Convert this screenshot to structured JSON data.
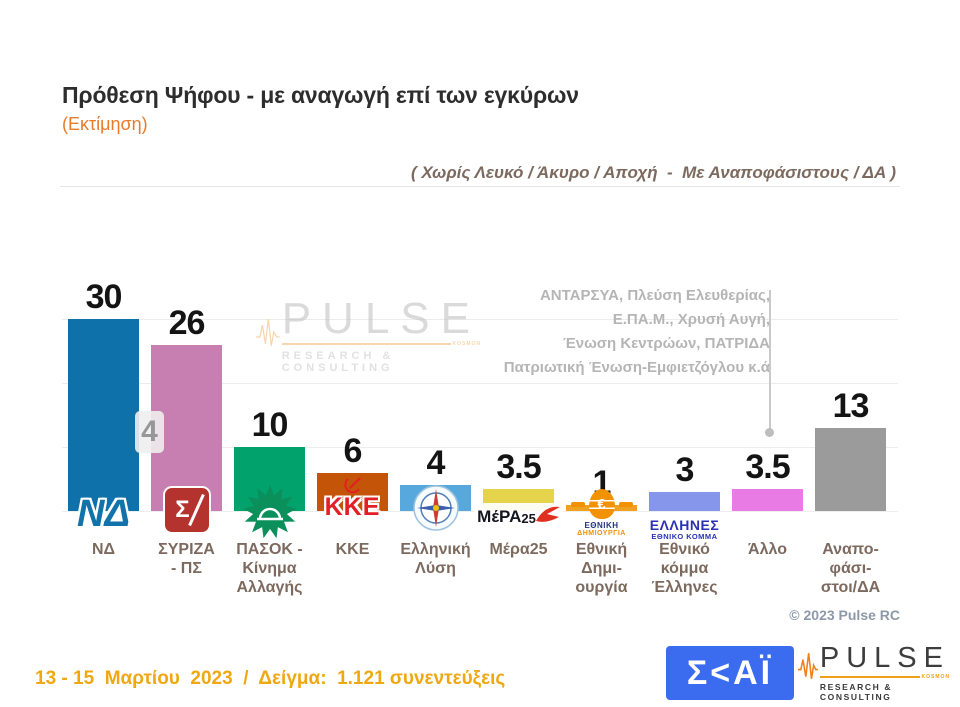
{
  "header": {
    "title": "Πρόθεση Ψήφου - με αναγωγή επί των εγκύρων",
    "subtitle": "(Εκτίμηση)",
    "note": "( Χωρίς Λευκό / Άκυρο / Αποχή  -  Με Αναποφάσιστους / ΔΑ )"
  },
  "chart_data": {
    "type": "bar",
    "title": "Πρόθεση Ψήφου - με αναγωγή επί των εγκύρων (Εκτίμηση)",
    "ylim": [
      0,
      33
    ],
    "gridlines": [
      10,
      20,
      30
    ],
    "grid": "horizontal-light",
    "legend": "none",
    "categories": [
      "ΝΔ",
      "ΣΥΡΙΖΑ - ΠΣ",
      "ΠΑΣΟΚ - Κίνημα Αλλαγής",
      "ΚΚΕ",
      "Ελληνική Λύση",
      "Μέρα25",
      "Εθνική Δημιουργία",
      "Εθνικό κόμμα Έλληνες",
      "Άλλο",
      "Αναποφάσιστοι/ΔΑ"
    ],
    "values": [
      30,
      26,
      10,
      6,
      4,
      3.5,
      1,
      3,
      3.5,
      13
    ],
    "bars": [
      {
        "id": "nd",
        "label_lines": [
          "ΝΔ"
        ],
        "value": 30,
        "display": "30",
        "color": "#0e71a9",
        "logo": {
          "type": "nd",
          "text": "ΝΔ"
        }
      },
      {
        "id": "syriza",
        "label_lines": [
          "ΣΥΡΙΖΑ",
          "- ΠΣ"
        ],
        "value": 26,
        "display": "26",
        "color": "#c77fb1",
        "logo": {
          "type": "syriza",
          "text": "Σ"
        }
      },
      {
        "id": "pasok",
        "label_lines": [
          "ΠΑΣΟΚ -",
          "Κίνημα",
          "Αλλαγής"
        ],
        "value": 10,
        "display": "10",
        "color": "#02a26d",
        "logo": {
          "type": "pasok"
        }
      },
      {
        "id": "kke",
        "label_lines": [
          "ΚΚΕ"
        ],
        "value": 6,
        "display": "6",
        "color": "#c45407",
        "logo": {
          "type": "kke",
          "text": "ΚΚΕ"
        }
      },
      {
        "id": "elliniki-lysi",
        "label_lines": [
          "Ελληνική",
          "Λύση"
        ],
        "value": 4,
        "display": "4",
        "color": "#57a9dd",
        "logo": {
          "type": "compass"
        }
      },
      {
        "id": "mera25",
        "label_lines": [
          "Μέρα25"
        ],
        "value": 3.5,
        "display": "3.5",
        "color": "#e5d34b",
        "logo": {
          "type": "mera25",
          "text": "MέPA",
          "text2": "25"
        }
      },
      {
        "id": "ethniki-dimiourgia",
        "label_lines": [
          "Εθνική",
          "Δημι-",
          "ουργία"
        ],
        "value": 1,
        "display": "1",
        "color": "#efa11f",
        "logo": {
          "type": "ed",
          "symbol": "€",
          "lines": [
            "ΕΘΝΙΚΗ",
            "ΔΗΜΙΟΥΡΓΙΑ"
          ]
        }
      },
      {
        "id": "ellines",
        "label_lines": [
          "Εθνικό",
          "κόμμα",
          "Έλληνες"
        ],
        "value": 3,
        "display": "3",
        "color": "#8696ea",
        "logo": {
          "type": "ellines",
          "lines": [
            "ΕΛΛΗΝΕΣ",
            "ΕΘΝΙΚΟ ΚΟΜΜΑ"
          ]
        }
      },
      {
        "id": "allo",
        "label_lines": [
          "Άλλο"
        ],
        "value": 3.5,
        "display": "3.5",
        "color": "#e97ce4",
        "logo": null
      },
      {
        "id": "anapofasistoi",
        "label_lines": [
          "Αναπο-",
          "φάσι-",
          "στοι/ΔΑ"
        ],
        "value": 13,
        "display": "13",
        "color": "#9b9b9b",
        "logo": null
      }
    ],
    "diff_badge": {
      "value": "4"
    },
    "annotation": {
      "lines": [
        "ΑΝΤΑΡΣΥΑ, Πλεύση Ελευθερίας,",
        "Ε.ΠΑ.Μ., Χρυσή Αυγή,",
        "Ένωση Κεντρώων,  ΠΑΤΡΙΔΑ",
        "Πατριωτική Ένωση-Εμφιετζόγλου  κ.ά"
      ],
      "points_to": "Άλλο"
    }
  },
  "watermark": {
    "brand": "PULSE",
    "tagline": "RESEARCH & CONSULTING",
    "tag": "KOSMON"
  },
  "copyright": "© 2023 Pulse RC",
  "footer": {
    "survey_info": "13 - 15  Μαρτίου  2023  /  Δείγμα:  1.121 συνεντεύξεις",
    "skai_logo_text": "Σ<ΑΪ",
    "pulse_logo": {
      "brand": "PULSE",
      "tagline": "RESEARCH & CONSULTING",
      "tag": "KOSMON"
    }
  },
  "colors": {
    "accent_orange": "#e87b28",
    "footer_orange": "#efa812",
    "skai_blue": "#3b6cf0",
    "annotation_gray": "#b5b5b5",
    "label_brown": "#7d6a5f"
  }
}
